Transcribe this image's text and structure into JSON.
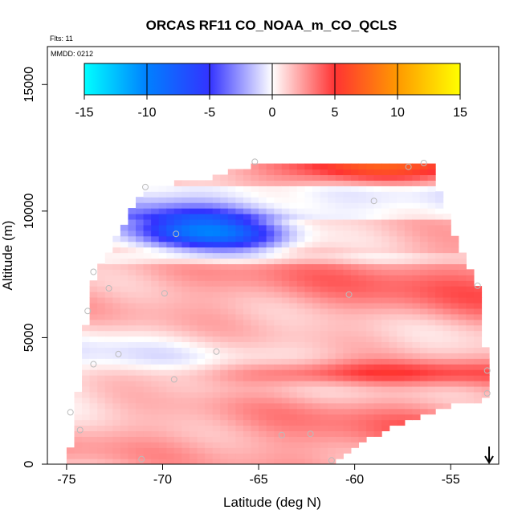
{
  "chart_data": {
    "type": "heatmap",
    "title": "ORCAS RF11 CO_NOAA_m_CO_QCLS",
    "flights_label": "Flts: 11",
    "date_label": "MMDD: 0212",
    "xlabel": "Latitude (deg N)",
    "ylabel": "Altitude (m)",
    "xlim": [
      -76,
      -52.5
    ],
    "ylim": [
      0,
      16500
    ],
    "x_ticks": [
      -75,
      -70,
      -65,
      -60,
      -55
    ],
    "x_tick_labels": [
      "-75",
      "-70",
      "-65",
      "-60",
      "-55"
    ],
    "y_ticks": [
      0,
      5000,
      10000,
      15000
    ],
    "y_tick_labels": [
      "0",
      "5000",
      "10000",
      "15000"
    ],
    "colorbar": {
      "min": -15,
      "max": 15,
      "ticks": [
        -15,
        -10,
        -5,
        0,
        5,
        10,
        15
      ],
      "tick_labels": [
        "-15",
        "-10",
        "-5",
        "0",
        "5",
        "10",
        "15"
      ],
      "stops": [
        {
          "value": -15,
          "color": "#00ffff"
        },
        {
          "value": -10,
          "color": "#0080ff"
        },
        {
          "value": -5,
          "color": "#3333ff"
        },
        {
          "value": 0,
          "color": "#ffffff"
        },
        {
          "value": 5,
          "color": "#ff3333"
        },
        {
          "value": 10,
          "color": "#ff9900"
        },
        {
          "value": 15,
          "color": "#ffff00"
        }
      ]
    },
    "field": {
      "grid_lat_start": -75,
      "grid_lat_end": -53,
      "grid_lat_step": 0.4,
      "grid_alt_start": 0,
      "grid_alt_end": 12000,
      "grid_alt_step": 220,
      "top_boundary": [
        {
          "lat": -75.0,
          "alt": 0
        },
        {
          "lat": -74.6,
          "alt": 1500
        },
        {
          "lat": -74.3,
          "alt": 3500
        },
        {
          "lat": -74.0,
          "alt": 5500
        },
        {
          "lat": -73.5,
          "alt": 7600
        },
        {
          "lat": -72.5,
          "alt": 8800
        },
        {
          "lat": -71.0,
          "alt": 10900
        },
        {
          "lat": -67.0,
          "alt": 11400
        },
        {
          "lat": -65.0,
          "alt": 11900
        },
        {
          "lat": -56.0,
          "alt": 11900
        },
        {
          "lat": -55.5,
          "alt": 10500
        },
        {
          "lat": -54.5,
          "alt": 8500
        },
        {
          "lat": -53.5,
          "alt": 7000
        },
        {
          "lat": -53.1,
          "alt": 3700
        },
        {
          "lat": -53.0,
          "alt": 2500
        }
      ],
      "bottom_boundary": [
        {
          "lat": -75.0,
          "alt": 0
        },
        {
          "lat": -61.0,
          "alt": 0
        },
        {
          "lat": -59.5,
          "alt": 900
        },
        {
          "lat": -57.0,
          "alt": 1800
        },
        {
          "lat": -55.0,
          "alt": 2300
        },
        {
          "lat": -53.0,
          "alt": 2600
        }
      ],
      "features": [
        {
          "name": "negative-anomaly",
          "lat": -68.3,
          "alt": 9200,
          "lat_width": 3.2,
          "alt_width": 800,
          "value": -9
        },
        {
          "name": "negative-anomaly-tail",
          "lat": -65.5,
          "alt": 9000,
          "lat_width": 2.5,
          "alt_width": 700,
          "value": -3
        },
        {
          "name": "upper-red-band",
          "lat": -59.5,
          "alt": 11700,
          "lat_width": 5,
          "alt_width": 600,
          "value": 5
        },
        {
          "name": "low-red-band",
          "lat": -60.0,
          "alt": 3600,
          "lat_width": 9,
          "alt_width": 500,
          "value": 4
        }
      ]
    },
    "sample_points": [
      {
        "lat": -65.2,
        "alt": 11950
      },
      {
        "lat": -57.2,
        "alt": 11750
      },
      {
        "lat": -56.4,
        "alt": 11900
      },
      {
        "lat": -70.9,
        "alt": 10950
      },
      {
        "lat": -59.0,
        "alt": 10400
      },
      {
        "lat": -69.3,
        "alt": 9100
      },
      {
        "lat": -73.6,
        "alt": 7600
      },
      {
        "lat": -72.8,
        "alt": 6950
      },
      {
        "lat": -69.9,
        "alt": 6750
      },
      {
        "lat": -60.3,
        "alt": 6700
      },
      {
        "lat": -53.6,
        "alt": 7050
      },
      {
        "lat": -73.9,
        "alt": 6050
      },
      {
        "lat": -72.3,
        "alt": 4350
      },
      {
        "lat": -67.2,
        "alt": 4450
      },
      {
        "lat": -73.6,
        "alt": 3950
      },
      {
        "lat": -69.4,
        "alt": 3350
      },
      {
        "lat": -53.1,
        "alt": 3700
      },
      {
        "lat": -53.1,
        "alt": 2800
      },
      {
        "lat": -74.8,
        "alt": 2050
      },
      {
        "lat": -74.3,
        "alt": 1350
      },
      {
        "lat": -63.8,
        "alt": 1150
      },
      {
        "lat": -62.3,
        "alt": 1200
      },
      {
        "lat": -71.1,
        "alt": 200
      },
      {
        "lat": -61.2,
        "alt": 150
      }
    ],
    "arrow_lat": -53.0
  }
}
